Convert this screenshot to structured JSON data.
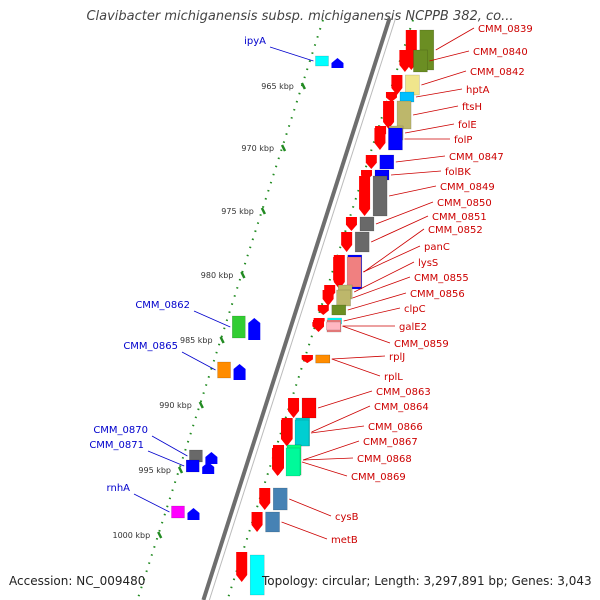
{
  "title": "Clavibacter michiganensis subsp. michiganensis NCPPB 382, co...",
  "footer": {
    "accession": "Accession: NC_009480",
    "summary": "Topology: circular; Length: 3,297,891 bp; Genes: 3,043"
  },
  "colors": {
    "backbone": "#6e6e6e",
    "tick": "#228b22",
    "forward_label": "#cc0000",
    "reverse_label": "#0000cc",
    "cds_forward": "#ff0000",
    "cds_reverse": "#0000ff"
  },
  "scale_ticks": [
    {
      "label": "965 kbp"
    },
    {
      "label": "970 kbp"
    },
    {
      "label": "975 kbp"
    },
    {
      "label": "980 kbp"
    },
    {
      "label": "985 kbp"
    },
    {
      "label": "990 kbp"
    },
    {
      "label": "995 kbp"
    },
    {
      "label": "1000 kbp"
    }
  ],
  "forward_genes": [
    {
      "label": "CMM_0839",
      "cog_color": "#6b8e23"
    },
    {
      "label": "CMM_0840",
      "cog_color": "#6b8e23"
    },
    {
      "label": "CMM_0842",
      "cog_color": "#f0e68c"
    },
    {
      "label": "hptA",
      "cog_color": "#00bfff"
    },
    {
      "label": "ftsH",
      "cog_color": "#bdb76b"
    },
    {
      "label": "folE",
      "cog_color": "#bdb76b"
    },
    {
      "label": "folP",
      "cog_color": "#0000ff"
    },
    {
      "label": "CMM_0847",
      "cog_color": "#0000ff"
    },
    {
      "label": "folBK",
      "cog_color": "#0000ff"
    },
    {
      "label": "CMM_0849",
      "cog_color": "#696969"
    },
    {
      "label": "CMM_0850",
      "cog_color": "#696969"
    },
    {
      "label": "CMM_0851",
      "cog_color": "#696969"
    },
    {
      "label": "CMM_0852",
      "cog_color": "#0000ff"
    },
    {
      "label": "panC",
      "cog_color": "#f08080"
    },
    {
      "label": "lysS",
      "cog_color": "#bdb76b"
    },
    {
      "label": "CMM_0855",
      "cog_color": "#bdb76b"
    },
    {
      "label": "CMM_0856",
      "cog_color": "#6b8e23"
    },
    {
      "label": "clpC",
      "cog_color": "#00ffff"
    },
    {
      "label": "galE2",
      "cog_color": "#f08080"
    },
    {
      "label": "CMM_0859",
      "cog_color": "#ffb6c1"
    },
    {
      "label": "rplJ",
      "cog_color": "#ff8c00"
    },
    {
      "label": "rplL",
      "cog_color": "#ff8c00"
    },
    {
      "label": "CMM_0863",
      "cog_color": "#ff0000"
    },
    {
      "label": "CMM_0864",
      "cog_color": "#00ced1"
    },
    {
      "label": "CMM_0866",
      "cog_color": "#00ced1"
    },
    {
      "label": "CMM_0867",
      "cog_color": "#00ced1"
    },
    {
      "label": "CMM_0868",
      "cog_color": "#00ff7f"
    },
    {
      "label": "CMM_0869",
      "cog_color": "#00fa9a"
    },
    {
      "label": "cysB",
      "cog_color": "#4682b4"
    },
    {
      "label": "metB",
      "cog_color": "#4682b4"
    }
  ],
  "reverse_genes": [
    {
      "label": "ipyA",
      "cog_color": "#00ffff"
    },
    {
      "label": "CMM_0862",
      "cog_color": "#32cd32"
    },
    {
      "label": "CMM_0865",
      "cog_color": "#ff8c00"
    },
    {
      "label": "CMM_0870",
      "cog_color": "#696969"
    },
    {
      "label": "CMM_0871",
      "cog_color": "#0000ff"
    },
    {
      "label": "rnhA",
      "cog_color": "#ff00ff"
    }
  ]
}
